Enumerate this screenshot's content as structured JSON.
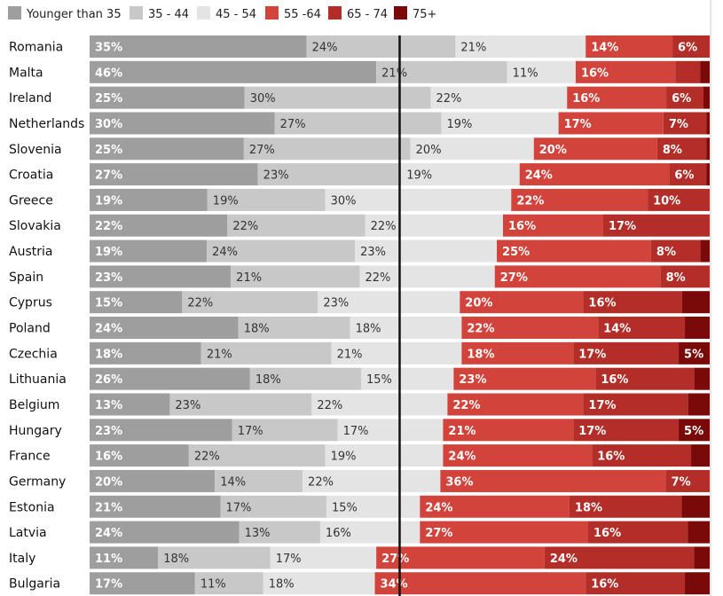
{
  "chart_data": {
    "type": "bar",
    "orientation": "horizontal",
    "stacked": true,
    "normalized": true,
    "legend_position": "top-left",
    "grid": false,
    "xlim": [
      0,
      100
    ],
    "series": [
      {
        "name": "Younger than 35",
        "color": "#9e9e9e",
        "label_color": "#ffffff"
      },
      {
        "name": "35 - 44",
        "color": "#c8c8c8",
        "label_color": "#333333"
      },
      {
        "name": "45 - 54",
        "color": "#e4e4e4",
        "label_color": "#333333"
      },
      {
        "name": "55 -64",
        "color": "#d2433b",
        "label_color": "#ffffff"
      },
      {
        "name": "65 - 74",
        "color": "#b32e28",
        "label_color": "#ffffff"
      },
      {
        "name": "75+",
        "color": "#7a0a0a",
        "label_color": "#ffffff"
      }
    ],
    "categories": [
      "Romania",
      "Malta",
      "Ireland",
      "Netherlands",
      "Slovenia",
      "Croatia",
      "Greece",
      "Slovakia",
      "Austria",
      "Spain",
      "Cyprus",
      "Poland",
      "Czechia",
      "Lithuania",
      "Belgium",
      "Hungary",
      "France",
      "Germany",
      "Estonia",
      "Latvia",
      "Italy",
      "Bulgaria"
    ],
    "values": [
      [
        35,
        24,
        21,
        14,
        6,
        0
      ],
      [
        46,
        21,
        11,
        16,
        4,
        1.5
      ],
      [
        25,
        30,
        22,
        16,
        6,
        1
      ],
      [
        30,
        27,
        19,
        17,
        7,
        0.5
      ],
      [
        25,
        27,
        20,
        20,
        8,
        0.5
      ],
      [
        27,
        23,
        19,
        24,
        6,
        0.5
      ],
      [
        19,
        19,
        30,
        22,
        10,
        0
      ],
      [
        22,
        22,
        22,
        16,
        17,
        0
      ],
      [
        19,
        24,
        23,
        25,
        8,
        1.5
      ],
      [
        23,
        21,
        22,
        27,
        8,
        0
      ],
      [
        15,
        22,
        23,
        20,
        16,
        4.5
      ],
      [
        24,
        18,
        18,
        22,
        14,
        4
      ],
      [
        18,
        21,
        21,
        18,
        17,
        5
      ],
      [
        26,
        18,
        15,
        23,
        16,
        2.5
      ],
      [
        13,
        23,
        22,
        22,
        17,
        3.5
      ],
      [
        23,
        17,
        17,
        21,
        17,
        5
      ],
      [
        16,
        22,
        19,
        24,
        16,
        3
      ],
      [
        20,
        14,
        22,
        36,
        7,
        0
      ],
      [
        21,
        17,
        15,
        24,
        18,
        4.5
      ],
      [
        24,
        13,
        16,
        27,
        16,
        3.5
      ],
      [
        11,
        18,
        17,
        27,
        24,
        2.5
      ],
      [
        17,
        11,
        18,
        34,
        16,
        4
      ]
    ],
    "labels": [
      [
        "35%",
        "24%",
        "21%",
        "14%",
        "6%",
        ""
      ],
      [
        "46%",
        "21%",
        "11%",
        "16%",
        "",
        ""
      ],
      [
        "25%",
        "30%",
        "22%",
        "16%",
        "6%",
        ""
      ],
      [
        "30%",
        "27%",
        "19%",
        "17%",
        "7%",
        ""
      ],
      [
        "25%",
        "27%",
        "20%",
        "20%",
        "8%",
        ""
      ],
      [
        "27%",
        "23%",
        "19%",
        "24%",
        "6%",
        ""
      ],
      [
        "19%",
        "19%",
        "30%",
        "22%",
        "10%",
        ""
      ],
      [
        "22%",
        "22%",
        "22%",
        "16%",
        "17%",
        ""
      ],
      [
        "19%",
        "24%",
        "23%",
        "25%",
        "8%",
        ""
      ],
      [
        "23%",
        "21%",
        "22%",
        "27%",
        "8%",
        ""
      ],
      [
        "15%",
        "22%",
        "23%",
        "20%",
        "16%",
        ""
      ],
      [
        "24%",
        "18%",
        "18%",
        "22%",
        "14%",
        ""
      ],
      [
        "18%",
        "21%",
        "21%",
        "18%",
        "17%",
        "5%"
      ],
      [
        "26%",
        "18%",
        "15%",
        "23%",
        "16%",
        ""
      ],
      [
        "13%",
        "23%",
        "22%",
        "22%",
        "17%",
        ""
      ],
      [
        "23%",
        "17%",
        "17%",
        "21%",
        "17%",
        "5%"
      ],
      [
        "16%",
        "22%",
        "19%",
        "24%",
        "16%",
        ""
      ],
      [
        "20%",
        "14%",
        "22%",
        "36%",
        "7%",
        ""
      ],
      [
        "21%",
        "17%",
        "15%",
        "24%",
        "18%",
        ""
      ],
      [
        "24%",
        "13%",
        "16%",
        "27%",
        "16%",
        ""
      ],
      [
        "11%",
        "18%",
        "17%",
        "27%",
        "24%",
        ""
      ],
      [
        "17%",
        "11%",
        "18%",
        "34%",
        "16%",
        ""
      ]
    ],
    "reference_line": {
      "at_percent": 50,
      "color": "#111111"
    }
  }
}
